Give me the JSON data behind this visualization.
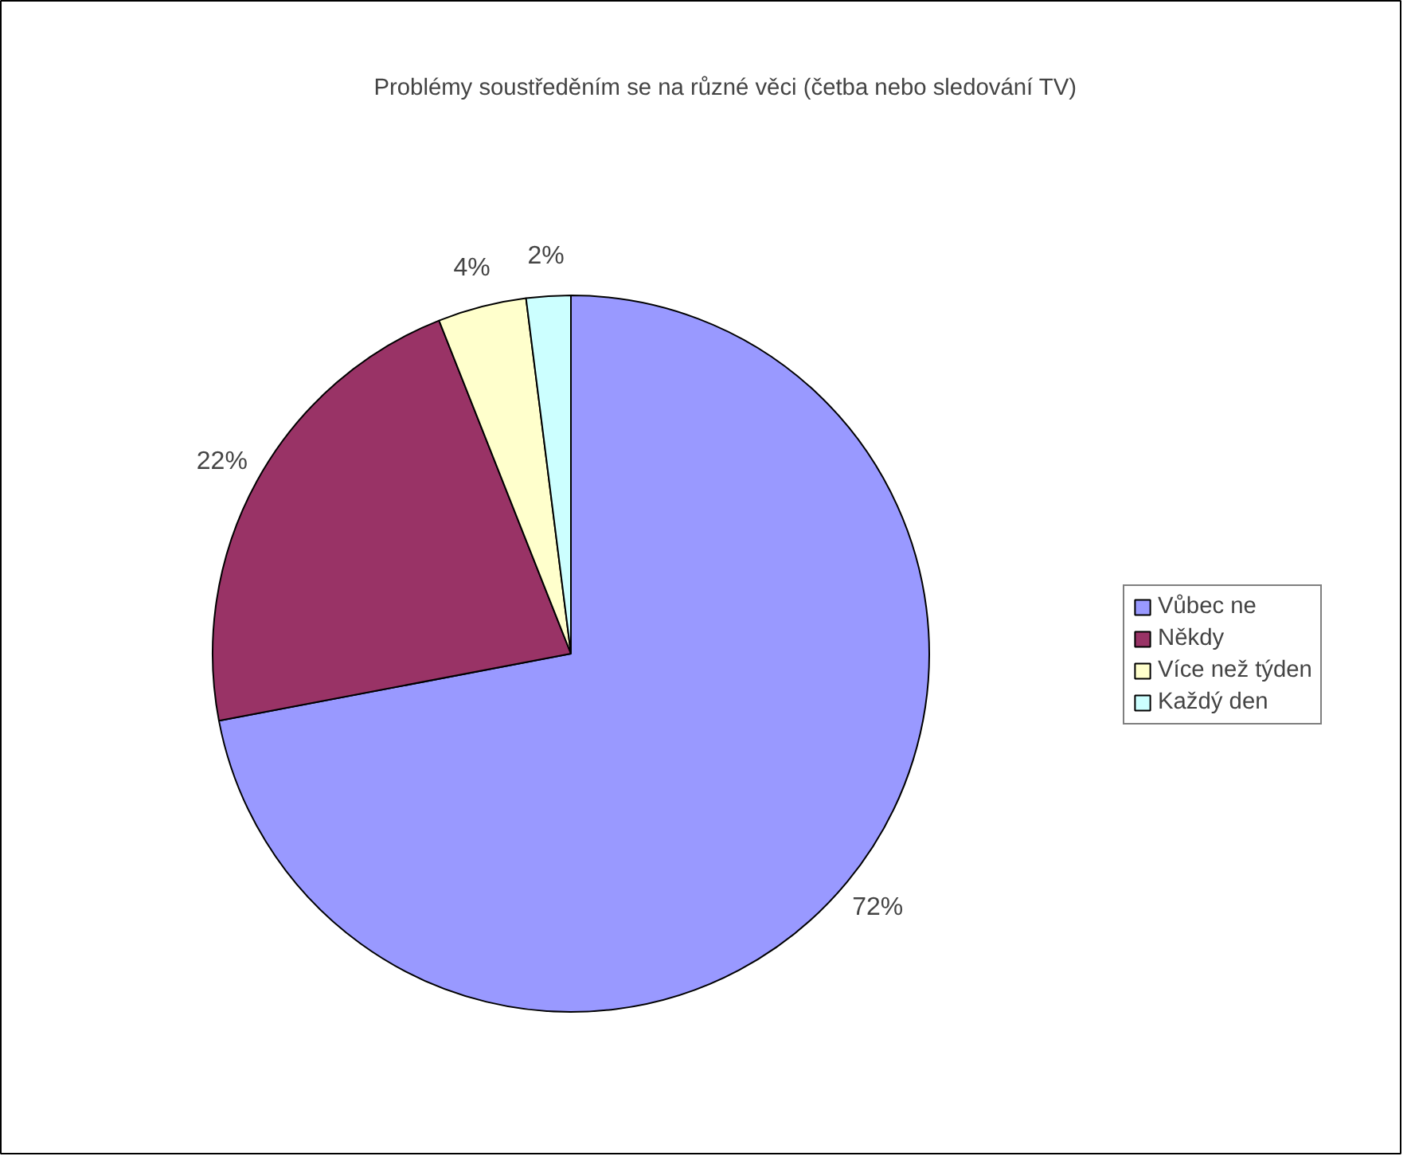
{
  "chart_data": {
    "type": "pie",
    "title": "Problémy soustředěním se na různé věci (četba nebo sledování TV)",
    "categories": [
      "Vůbec ne",
      "Někdy",
      "Více než týden",
      "Každý den"
    ],
    "values": [
      72,
      22,
      4,
      2
    ],
    "colors": [
      "#9999ff",
      "#993366",
      "#ffffcc",
      "#ccffff"
    ],
    "value_labels": [
      "72%",
      "22%",
      "4%",
      "2%"
    ],
    "legend": "right"
  }
}
